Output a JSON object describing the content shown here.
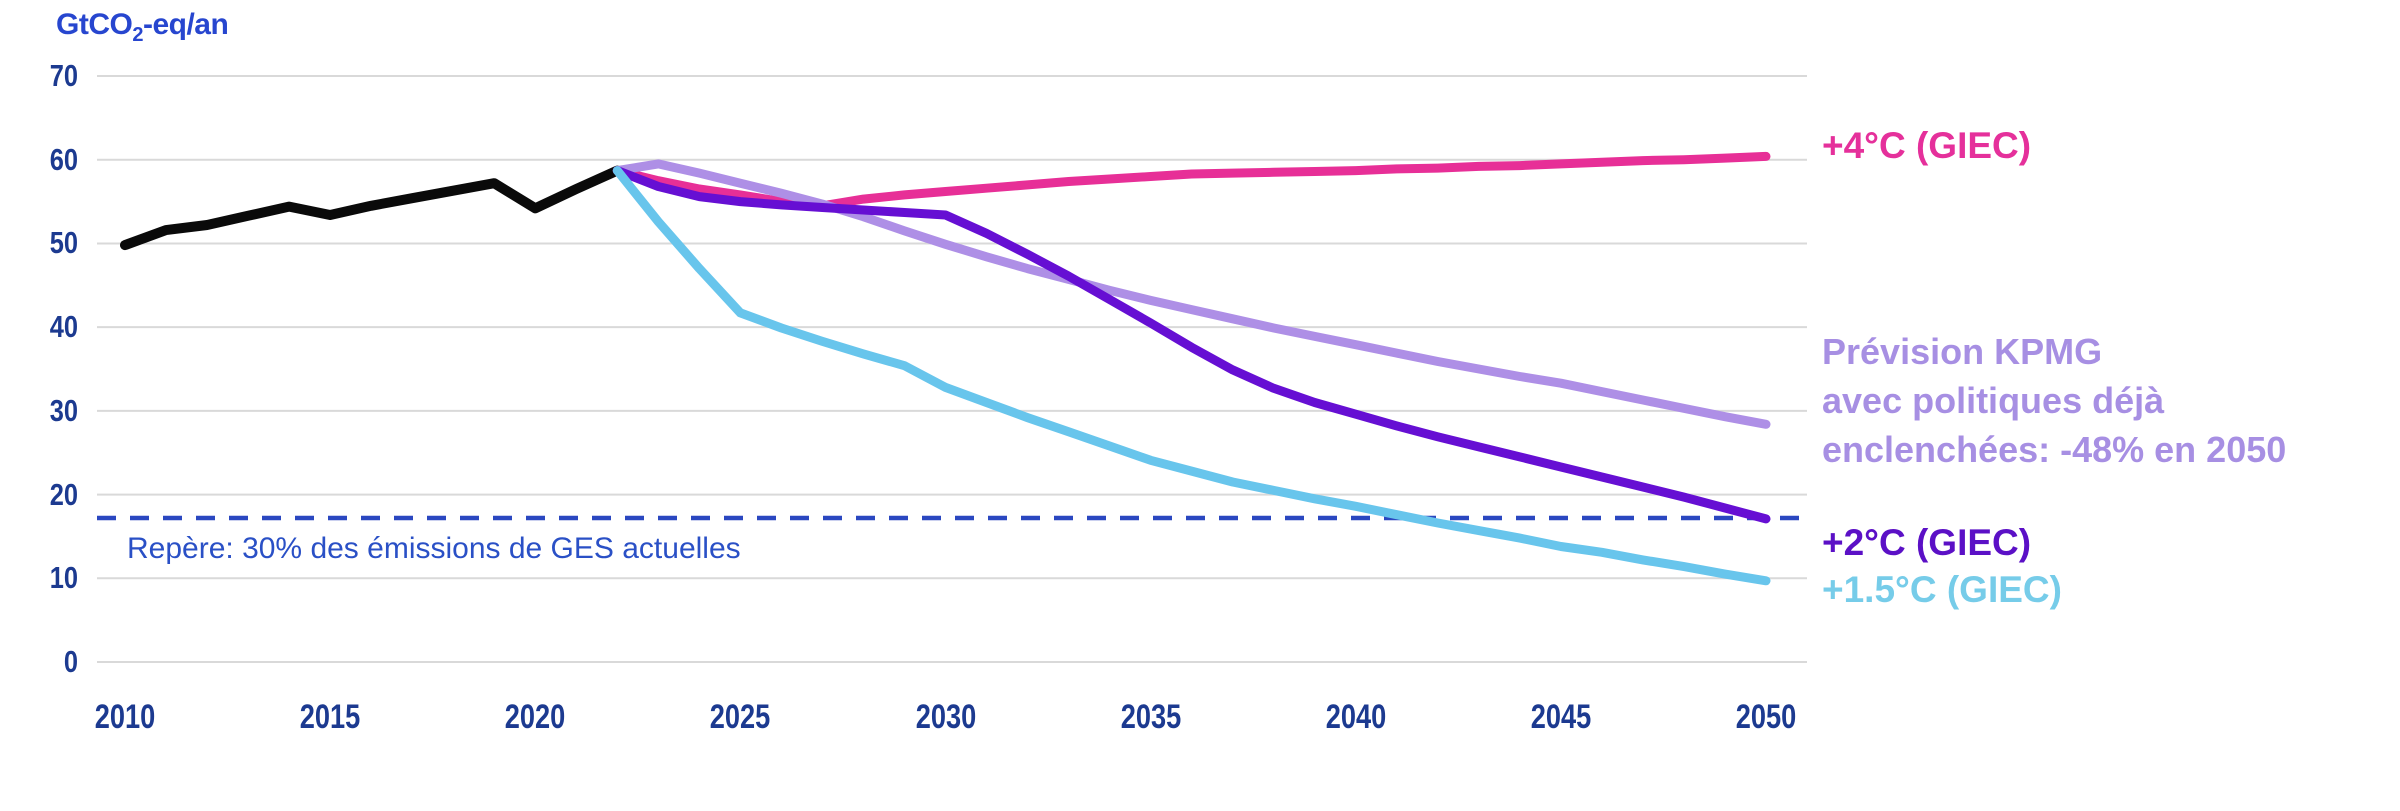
{
  "chart_data": {
    "type": "line",
    "title": {
      "prefix": "GtCO",
      "sub": "2",
      "suffix": "-eq/an"
    },
    "xlim": [
      2010,
      2050
    ],
    "ylim": [
      0,
      70
    ],
    "x_ticks": [
      "2010",
      "2015",
      "2020",
      "2025",
      "2030",
      "2035",
      "2040",
      "2045",
      "2050"
    ],
    "y_ticks": [
      "0",
      "10",
      "20",
      "30",
      "40",
      "50",
      "60",
      "70"
    ],
    "grid": "horizontal-only",
    "grid_color": "#d9d9d9",
    "tick_color": "#1c3a90",
    "title_color": "#2746cf",
    "legend_position": "right",
    "series": [
      {
        "id": "emissions-historiques",
        "color": "#0a0a0a",
        "points": [
          [
            2010,
            49.8
          ],
          [
            2011,
            51.6
          ],
          [
            2012,
            52.2
          ],
          [
            2013,
            53.3
          ],
          [
            2014,
            54.4
          ],
          [
            2015,
            53.4
          ],
          [
            2016,
            54.5
          ],
          [
            2017,
            55.4
          ],
          [
            2018,
            56.3
          ],
          [
            2019,
            57.2
          ],
          [
            2020,
            54.2
          ],
          [
            2021,
            56.5
          ],
          [
            2022,
            58.7
          ]
        ]
      },
      {
        "id": "plus-4c-giec",
        "label": "+4°C (GIEC)",
        "color": "#e72f97",
        "points": [
          [
            2022,
            58.7
          ],
          [
            2023,
            57.5
          ],
          [
            2024,
            56.5
          ],
          [
            2025,
            55.8
          ],
          [
            2026,
            55.0
          ],
          [
            2027,
            54.5
          ],
          [
            2028,
            55.3
          ],
          [
            2029,
            55.8
          ],
          [
            2030,
            56.2
          ],
          [
            2031,
            56.6
          ],
          [
            2032,
            57.0
          ],
          [
            2033,
            57.4
          ],
          [
            2034,
            57.7
          ],
          [
            2035,
            58.0
          ],
          [
            2036,
            58.3
          ],
          [
            2037,
            58.4
          ],
          [
            2038,
            58.5
          ],
          [
            2039,
            58.6
          ],
          [
            2040,
            58.7
          ],
          [
            2041,
            58.9
          ],
          [
            2042,
            59.0
          ],
          [
            2043,
            59.2
          ],
          [
            2044,
            59.3
          ],
          [
            2045,
            59.5
          ],
          [
            2046,
            59.7
          ],
          [
            2047,
            59.9
          ],
          [
            2048,
            60.0
          ],
          [
            2049,
            60.2
          ],
          [
            2050,
            60.4
          ]
        ]
      },
      {
        "id": "prevision-kpmg",
        "label": "Prévision KPMG avec politiques déjà enclenchées: -48% en 2050",
        "color": "#ae8fe6",
        "points": [
          [
            2022,
            58.7
          ],
          [
            2023,
            59.5
          ],
          [
            2024,
            58.4
          ],
          [
            2025,
            57.2
          ],
          [
            2026,
            56.0
          ],
          [
            2027,
            54.7
          ],
          [
            2028,
            53.2
          ],
          [
            2029,
            51.5
          ],
          [
            2030,
            49.9
          ],
          [
            2031,
            48.4
          ],
          [
            2032,
            47.0
          ],
          [
            2033,
            45.7
          ],
          [
            2034,
            44.4
          ],
          [
            2035,
            43.2
          ],
          [
            2036,
            42.1
          ],
          [
            2037,
            41.0
          ],
          [
            2038,
            39.9
          ],
          [
            2039,
            38.9
          ],
          [
            2040,
            37.9
          ],
          [
            2041,
            36.9
          ],
          [
            2042,
            35.9
          ],
          [
            2043,
            35.0
          ],
          [
            2044,
            34.1
          ],
          [
            2045,
            33.3
          ],
          [
            2046,
            32.3
          ],
          [
            2047,
            31.3
          ],
          [
            2048,
            30.3
          ],
          [
            2049,
            29.3
          ],
          [
            2050,
            28.4
          ]
        ]
      },
      {
        "id": "plus-2c-giec",
        "label": "+2°C (GIEC)",
        "color": "#660fd3",
        "points": [
          [
            2022,
            58.7
          ],
          [
            2023,
            56.8
          ],
          [
            2024,
            55.6
          ],
          [
            2025,
            55.0
          ],
          [
            2026,
            54.6
          ],
          [
            2027,
            54.3
          ],
          [
            2028,
            54.0
          ],
          [
            2029,
            53.7
          ],
          [
            2030,
            53.4
          ],
          [
            2031,
            51.2
          ],
          [
            2032,
            48.7
          ],
          [
            2033,
            46.1
          ],
          [
            2034,
            43.3
          ],
          [
            2035,
            40.5
          ],
          [
            2036,
            37.6
          ],
          [
            2037,
            34.9
          ],
          [
            2038,
            32.7
          ],
          [
            2039,
            31.0
          ],
          [
            2040,
            29.6
          ],
          [
            2041,
            28.2
          ],
          [
            2042,
            26.9
          ],
          [
            2043,
            25.7
          ],
          [
            2044,
            24.5
          ],
          [
            2045,
            23.3
          ],
          [
            2046,
            22.1
          ],
          [
            2047,
            20.9
          ],
          [
            2048,
            19.7
          ],
          [
            2049,
            18.4
          ],
          [
            2050,
            17.1
          ]
        ]
      },
      {
        "id": "plus-1-5c-giec",
        "label": "+1.5°C (GIEC)",
        "color": "#68c5ec",
        "points": [
          [
            2022,
            58.7
          ],
          [
            2023,
            52.6
          ],
          [
            2024,
            47.0
          ],
          [
            2025,
            41.7
          ],
          [
            2026,
            39.9
          ],
          [
            2027,
            38.3
          ],
          [
            2028,
            36.8
          ],
          [
            2029,
            35.4
          ],
          [
            2030,
            32.8
          ],
          [
            2031,
            31.0
          ],
          [
            2032,
            29.2
          ],
          [
            2033,
            27.5
          ],
          [
            2034,
            25.8
          ],
          [
            2035,
            24.1
          ],
          [
            2036,
            22.8
          ],
          [
            2037,
            21.5
          ],
          [
            2038,
            20.5
          ],
          [
            2039,
            19.5
          ],
          [
            2040,
            18.6
          ],
          [
            2041,
            17.6
          ],
          [
            2042,
            16.6
          ],
          [
            2043,
            15.7
          ],
          [
            2044,
            14.8
          ],
          [
            2045,
            13.8
          ],
          [
            2046,
            13.1
          ],
          [
            2047,
            12.2
          ],
          [
            2048,
            11.4
          ],
          [
            2049,
            10.5
          ],
          [
            2050,
            9.7
          ]
        ]
      }
    ],
    "reference_line": {
      "value": 17.2,
      "style": "dashed",
      "color": "#2a47c0",
      "label": "Repère: 30% des émissions de GES actuelles",
      "label_color": "#2a50c6"
    },
    "legend": [
      {
        "text": "+4°C (GIEC)",
        "color": "#e5309b"
      },
      {
        "text": "Prévision KPMG\navec politiques déjà\nenclenchées: -48% en 2050",
        "color": "#a78fe3"
      },
      {
        "text": "+2°C (GIEC)",
        "color": "#5b10c6"
      },
      {
        "text": "+1.5°C (GIEC)",
        "color": "#76cce9"
      }
    ]
  }
}
